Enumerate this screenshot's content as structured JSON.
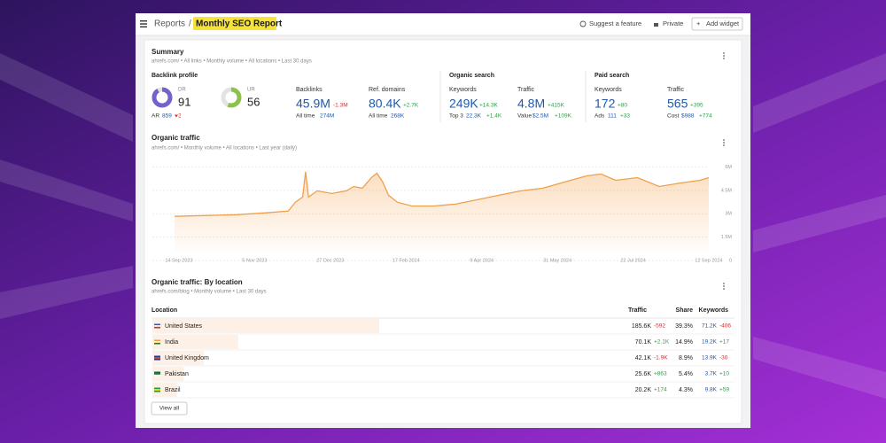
{
  "header": {
    "breadcrumb": "Reports",
    "separator": "/",
    "title": "Monthly SEO Report",
    "actions": [
      "Suggest a feature",
      "Private",
      "Add widget"
    ]
  },
  "summary": {
    "title": "Summary",
    "subtitle": "ahrefs.com/ • All links • Monthly volume • All locations • Last 30 days",
    "backlink_profile": {
      "title": "Backlink profile",
      "dr": {
        "label": "DR",
        "value": 91
      },
      "ar": {
        "label": "AR",
        "value": "859",
        "change": "2"
      },
      "ur": {
        "label": "UR",
        "value": 56
      },
      "backlinks": {
        "label": "Backlinks",
        "value": "45.9M",
        "change": "-1.3M",
        "sub_label": "All time",
        "sub_value": "274M"
      },
      "ref_domains": {
        "label": "Ref. domains",
        "value": "80.4K",
        "change": "+2.7K",
        "sub_label": "All time",
        "sub_value": "268K"
      }
    },
    "organic_search": {
      "title": "Organic search",
      "keywords": {
        "label": "Keywords",
        "value": "249K",
        "change": "+14.3K",
        "sub_label": "Top 3",
        "sub_value": "22.3K",
        "sub_change": "+1.4K"
      },
      "traffic": {
        "label": "Traffic",
        "value": "4.8M",
        "change": "+415K",
        "sub_label": "Value",
        "sub_value": "$2.5M",
        "sub_change": "+109K"
      }
    },
    "paid_search": {
      "title": "Paid search",
      "keywords": {
        "label": "Keywords",
        "value": "172",
        "change": "+80",
        "sub_label": "Ads",
        "sub_value": "111",
        "sub_change": "+33"
      },
      "traffic": {
        "label": "Traffic",
        "value": "565",
        "change": "+395",
        "sub_label": "Cost",
        "sub_value": "$988",
        "sub_change": "+774"
      }
    }
  },
  "organic_traffic": {
    "title": "Organic traffic",
    "subtitle": "ahrefs.com/ • Monthly volume • All locations • Last year (daily)",
    "chart": {
      "type": "area",
      "color": "#f0a04b",
      "x": [
        -3,
        20,
        40,
        60,
        75,
        80,
        85,
        87,
        89,
        95,
        105,
        115,
        120,
        126,
        132,
        136,
        140,
        144,
        150,
        160,
        175,
        190,
        205,
        220,
        235,
        250,
        265,
        280,
        290,
        300,
        315,
        330,
        345,
        358,
        364
      ],
      "values": [
        2.83,
        2.89,
        2.94,
        3.06,
        3.17,
        3.74,
        4.07,
        5.7,
        4.07,
        4.47,
        4.3,
        4.47,
        4.75,
        4.64,
        5.3,
        5.6,
        5.04,
        4.19,
        3.74,
        3.5,
        3.5,
        3.62,
        3.9,
        4.19,
        4.47,
        4.64,
        5.04,
        5.43,
        5.55,
        5.15,
        5.32,
        4.75,
        4.98,
        5.15,
        5.32
      ],
      "xlim": [
        -3,
        364
      ],
      "xticks": [
        {
          "value": 0,
          "label": "14 Sep 2023"
        },
        {
          "value": 52,
          "label": "5 Nov 2023"
        },
        {
          "value": 104,
          "label": "27 Dec 2023"
        },
        {
          "value": 156,
          "label": "17 Feb 2024"
        },
        {
          "value": 208,
          "label": "9 Apr 2024"
        },
        {
          "value": 260,
          "label": "31 May 2024"
        },
        {
          "value": 312,
          "label": "22 Jul 2024"
        },
        {
          "value": 364,
          "label": "12 Sep 2024"
        }
      ],
      "ylim": [
        0,
        6.2
      ],
      "yticks": [
        0,
        {
          "value": 1.5,
          "label": "1.5M"
        },
        {
          "value": 3,
          "label": "3M"
        },
        {
          "value": 4.5,
          "label": "4.5M"
        },
        {
          "value": 6,
          "label": "6M"
        }
      ],
      "grid": true
    }
  },
  "by_location": {
    "title": "Organic traffic: By location",
    "subtitle": "ahrefs.com/blog • Monthly volume • Last 30 days",
    "columns": [
      "Location",
      "Traffic",
      "Share",
      "Keywords"
    ],
    "rows": [
      {
        "location": "United States",
        "traffic": "185.6K",
        "traffic_change": "-592",
        "share": "39.3%",
        "keywords": "71.2K",
        "keywords_change": "-406"
      },
      {
        "location": "India",
        "traffic": "70.1K",
        "traffic_change": "+2.1K",
        "share": "14.9%",
        "keywords": "19.2K",
        "keywords_change": "+17"
      },
      {
        "location": "United Kingdom",
        "traffic": "42.1K",
        "traffic_change": "-1.9K",
        "share": "8.9%",
        "keywords": "13.9K",
        "keywords_change": "-30"
      },
      {
        "location": "Pakistan",
        "traffic": "25.6K",
        "traffic_change": "+863",
        "share": "5.4%",
        "keywords": "3.7K",
        "keywords_change": "+10"
      },
      {
        "location": "Brazil",
        "traffic": "20.2K",
        "traffic_change": "+174",
        "share": "4.3%",
        "keywords": "9.8K",
        "keywords_change": "+59"
      }
    ],
    "view_all": "View all"
  }
}
